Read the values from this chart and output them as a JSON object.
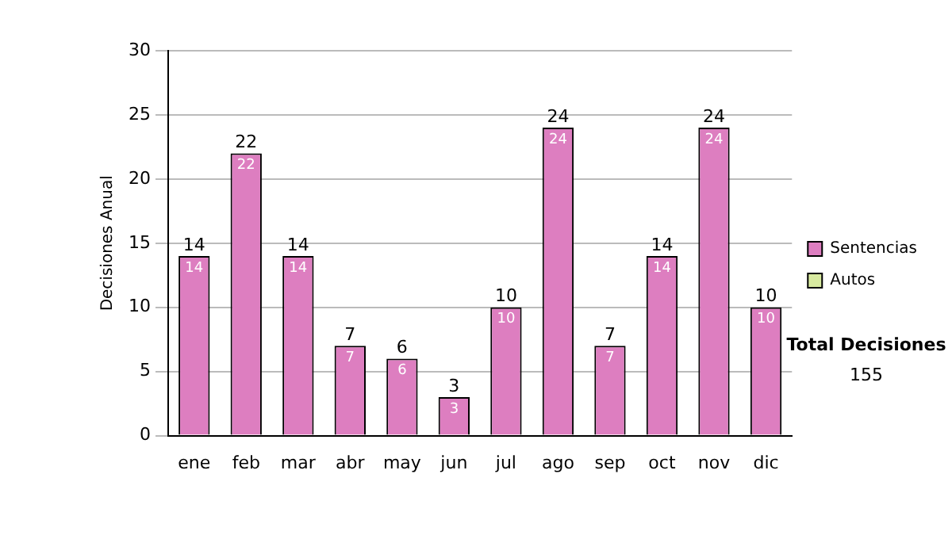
{
  "chart_data": {
    "type": "bar",
    "ylabel": "Decisiones Anual",
    "categories": [
      "ene",
      "feb",
      "mar",
      "abr",
      "may",
      "jun",
      "jul",
      "ago",
      "sep",
      "oct",
      "nov",
      "dic"
    ],
    "series": [
      {
        "name": "Sentencias",
        "color": "#dd7ec0",
        "values": [
          14,
          22,
          14,
          7,
          6,
          3,
          10,
          24,
          7,
          14,
          24,
          10
        ]
      },
      {
        "name": "Autos",
        "color": "#d8eaa0",
        "values": [
          null,
          null,
          null,
          null,
          null,
          null,
          null,
          null,
          null,
          null,
          null,
          null
        ]
      }
    ],
    "stacked": true,
    "totals": [
      "14",
      "22",
      "14",
      "7",
      "6",
      "3",
      "10",
      "24",
      "7",
      "14",
      "24",
      "10"
    ],
    "data_labels": true,
    "ylim": [
      0,
      30
    ],
    "yticks": [
      0,
      5,
      10,
      15,
      20,
      25,
      30
    ],
    "grid": "y",
    "legend": "right",
    "annotations": [
      "Total Decisiones",
      "155"
    ]
  }
}
